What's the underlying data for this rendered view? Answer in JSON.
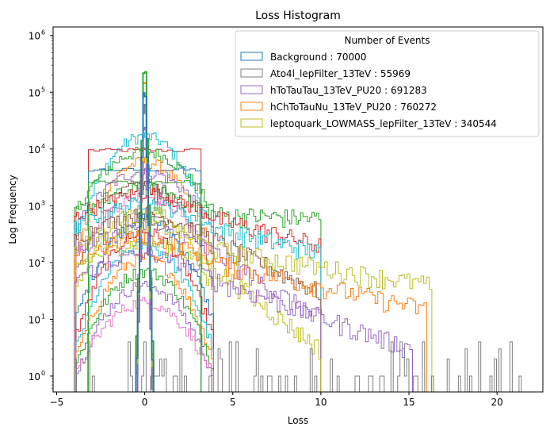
{
  "chart_data": {
    "type": "histogram",
    "title": "Loss Histogram",
    "xlabel": "Loss",
    "ylabel": "Log Frequency",
    "xlim": [
      -5.2,
      22.6
    ],
    "ylim_log10": [
      -0.28,
      6.15
    ],
    "yscale": "log",
    "grid": false,
    "x_ticks": [
      {
        "value": -5,
        "label": "−5"
      },
      {
        "value": 0,
        "label": "0"
      },
      {
        "value": 5,
        "label": "5"
      },
      {
        "value": 10,
        "label": "10"
      },
      {
        "value": 15,
        "label": "15"
      },
      {
        "value": 20,
        "label": "20"
      }
    ],
    "y_ticks": [
      {
        "exp": 0,
        "label": "10",
        "sup": "0"
      },
      {
        "exp": 1,
        "label": "10",
        "sup": "1"
      },
      {
        "exp": 2,
        "label": "10",
        "sup": "2"
      },
      {
        "exp": 3,
        "label": "10",
        "sup": "3"
      },
      {
        "exp": 4,
        "label": "10",
        "sup": "4"
      },
      {
        "exp": 5,
        "label": "10",
        "sup": "5"
      },
      {
        "exp": 6,
        "label": "10",
        "sup": "6"
      }
    ],
    "legend": {
      "title": "Number of Events",
      "placement": "upper-right",
      "entries": [
        {
          "label": "Background : 70000",
          "color": "#1f77b4"
        },
        {
          "label": "Ato4l_lepFilter_13TeV : 55969",
          "color": "#7f7f7f"
        },
        {
          "label": "hToTauTau_13TeV_PU20 : 691283",
          "color": "#9467bd"
        },
        {
          "label": "hChToTauNu_13TeV_PU20 : 760272",
          "color": "#ff7f0e"
        },
        {
          "label": "leptoquark_LOWMASS_lepFilter_13TeV : 340544",
          "color": "#bcbd22"
        }
      ]
    },
    "palette": [
      "#1f77b4",
      "#ff7f0e",
      "#2ca02c",
      "#d62728",
      "#9467bd",
      "#8c564b",
      "#e377c2",
      "#7f7f7f",
      "#bcbd22",
      "#17becf"
    ],
    "histograms": [
      {
        "color": "#d62728",
        "range": [
          -3.2,
          3.2
        ],
        "profile": "flat",
        "peak": 9500,
        "edge": 9500,
        "bins": 20
      },
      {
        "color": "#1f77b4",
        "range": [
          -3.2,
          3.2
        ],
        "profile": "flat",
        "peak": 4300,
        "edge": 4300,
        "bins": 20
      },
      {
        "color": "#2ca02c",
        "range": [
          -3.2,
          3.2
        ],
        "profile": "flat",
        "peak": 2600,
        "edge": 2600,
        "bins": 20
      },
      {
        "color": "#17becf",
        "range": [
          -3.9,
          3.9
        ],
        "profile": "dome",
        "peak": 17000,
        "edge": 300,
        "bins": 60
      },
      {
        "color": "#2ca02c",
        "range": [
          -3.9,
          3.9
        ],
        "profile": "dome",
        "peak": 9000,
        "edge": 800,
        "bins": 60
      },
      {
        "color": "#ff7f0e",
        "range": [
          -3.9,
          3.9
        ],
        "profile": "dome",
        "peak": 6000,
        "edge": 150,
        "bins": 60
      },
      {
        "color": "#9467bd",
        "range": [
          -3.9,
          3.9
        ],
        "profile": "dome",
        "peak": 4000,
        "edge": 400,
        "bins": 60
      },
      {
        "color": "#8c564b",
        "range": [
          -3.9,
          3.9
        ],
        "profile": "dome",
        "peak": 2500,
        "edge": 60,
        "bins": 60
      },
      {
        "color": "#e377c2",
        "range": [
          -3.9,
          3.9
        ],
        "profile": "dome",
        "peak": 1500,
        "edge": 120,
        "bins": 60
      },
      {
        "color": "#bcbd22",
        "range": [
          -3.9,
          3.9
        ],
        "profile": "dome",
        "peak": 900,
        "edge": 30,
        "bins": 60
      },
      {
        "color": "#1f77b4",
        "range": [
          -3.9,
          3.9
        ],
        "profile": "dome",
        "peak": 600,
        "edge": 10,
        "bins": 60
      },
      {
        "color": "#d62728",
        "range": [
          -3.9,
          3.9
        ],
        "profile": "dome",
        "peak": 350,
        "edge": 5,
        "bins": 60
      },
      {
        "color": "#17becf",
        "range": [
          -3.9,
          3.9
        ],
        "profile": "dome",
        "peak": 200,
        "edge": 3,
        "bins": 60
      },
      {
        "color": "#ff7f0e",
        "range": [
          -3.9,
          3.9
        ],
        "profile": "dome",
        "peak": 120,
        "edge": 2,
        "bins": 60
      },
      {
        "color": "#2ca02c",
        "range": [
          -3.9,
          3.9
        ],
        "profile": "dome",
        "peak": 70,
        "edge": 1.5,
        "bins": 60
      },
      {
        "color": "#9467bd",
        "range": [
          -3.9,
          3.9
        ],
        "profile": "dome",
        "peak": 40,
        "edge": 1,
        "bins": 60
      },
      {
        "color": "#e377c2",
        "range": [
          -3.9,
          3.9
        ],
        "profile": "dome",
        "peak": 20,
        "edge": 1,
        "bins": 60
      },
      {
        "color": "#2ca02c",
        "range": [
          -4.0,
          10.0
        ],
        "profile": "tail",
        "peak": 700,
        "edge": 600,
        "bins": 110
      },
      {
        "color": "#d62728",
        "range": [
          -4.0,
          10.0
        ],
        "profile": "tail",
        "peak": 600,
        "edge": 200,
        "bins": 110
      },
      {
        "color": "#17becf",
        "range": [
          -4.0,
          10.0
        ],
        "profile": "tail",
        "peak": 400,
        "edge": 150,
        "bins": 110
      },
      {
        "color": "#8c564b",
        "range": [
          -4.0,
          10.0
        ],
        "profile": "tail",
        "peak": 250,
        "edge": 30,
        "bins": 110
      },
      {
        "color": "#9467bd",
        "range": [
          -4.0,
          10.0
        ],
        "profile": "tail",
        "peak": 150,
        "edge": 10,
        "bins": 110
      },
      {
        "color": "#bcbd22",
        "range": [
          -4.0,
          10.0
        ],
        "profile": "tail",
        "peak": 80,
        "edge": 3,
        "bins": 110
      },
      {
        "color": "#bcbd22",
        "range": [
          -4.0,
          16.3
        ],
        "profile": "tail",
        "peak": 170,
        "edge": 40,
        "bins": 130
      },
      {
        "color": "#ff7f0e",
        "range": [
          -4.0,
          16.0
        ],
        "profile": "tail",
        "peak": 100,
        "edge": 15,
        "bins": 130
      },
      {
        "color": "#9467bd",
        "range": [
          -4.0,
          15.2
        ],
        "profile": "tail",
        "peak": 50,
        "edge": 3,
        "bins": 130
      },
      {
        "color": "#7f7f7f",
        "range": [
          -4.0,
          21.5
        ],
        "profile": "sparse",
        "peak": 5,
        "edge": 1,
        "bins": 200
      },
      {
        "color": "#7f7f7f",
        "range": [
          -0.6,
          0.6
        ],
        "profile": "spike",
        "peak": 200000,
        "edge": 1,
        "bins": 12
      },
      {
        "color": "#ff7f0e",
        "range": [
          -0.6,
          0.6
        ],
        "profile": "spike",
        "peak": 500000,
        "edge": 1,
        "bins": 12
      },
      {
        "color": "#9467bd",
        "range": [
          -0.6,
          0.6
        ],
        "profile": "spike",
        "peak": 100000,
        "edge": 1,
        "bins": 12
      },
      {
        "color": "#bcbd22",
        "range": [
          -0.6,
          0.6
        ],
        "profile": "spike",
        "peak": 300000,
        "edge": 1,
        "bins": 12
      },
      {
        "color": "#2ca02c",
        "range": [
          -0.6,
          0.6
        ],
        "profile": "spike",
        "peak": 760000,
        "edge": 1,
        "bins": 12
      },
      {
        "color": "#1f77b4",
        "range": [
          -0.6,
          0.6
        ],
        "profile": "spike",
        "peak": 340000,
        "edge": 1,
        "bins": 12
      }
    ]
  }
}
